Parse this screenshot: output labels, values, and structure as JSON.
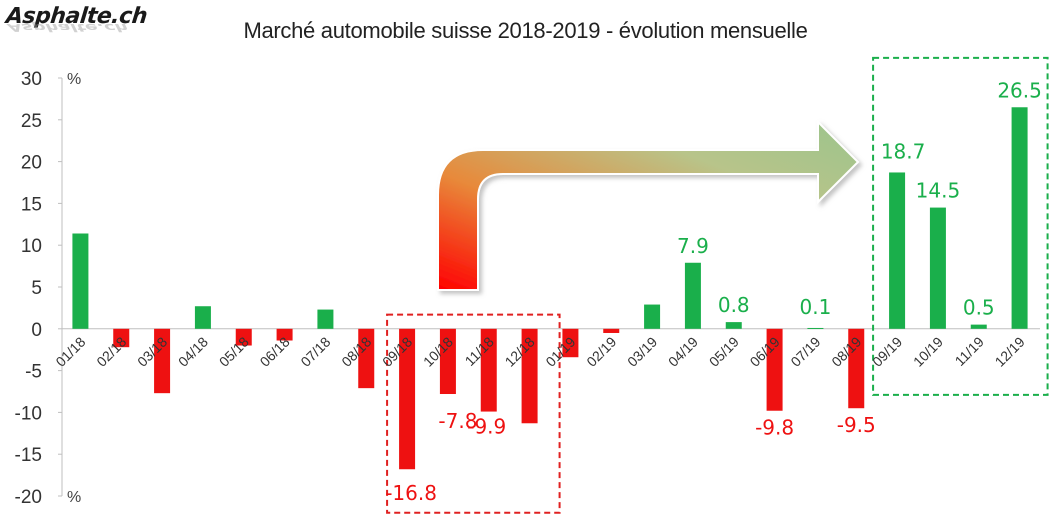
{
  "brand": {
    "logo_text": "Asphalte.ch"
  },
  "chart_data": {
    "type": "bar",
    "title": "Marché automobile suisse 2018-2019 - évolution mensuelle",
    "ylabel": "%",
    "ylim": [
      -20,
      30
    ],
    "yticks": [
      30,
      25,
      20,
      15,
      10,
      5,
      0,
      -5,
      -10,
      -15,
      -20
    ],
    "categories": [
      "01/18",
      "02/18",
      "03/18",
      "04/18",
      "05/18",
      "06/18",
      "07/18",
      "08/18",
      "09/18",
      "10/18",
      "11/18",
      "12/18",
      "01/19",
      "02/19",
      "03/19",
      "04/19",
      "05/19",
      "06/19",
      "07/19",
      "08/19",
      "09/19",
      "10/19",
      "11/19",
      "12/19"
    ],
    "values": [
      11.4,
      -2.2,
      -7.7,
      2.7,
      -2.0,
      -1.4,
      2.3,
      -7.1,
      -16.8,
      -7.8,
      -9.9,
      -11.3,
      -3.4,
      -0.5,
      2.9,
      7.9,
      0.8,
      -9.8,
      0.1,
      -9.5,
      18.7,
      14.5,
      0.5,
      26.5
    ],
    "data_labels": [
      null,
      null,
      null,
      null,
      null,
      null,
      null,
      null,
      "-16.8",
      "-7.8",
      "-9.9",
      null,
      null,
      null,
      null,
      "7.9",
      "0.8",
      "-9.8",
      "0.1",
      "-9.5",
      "18.7",
      "14.5",
      "0.5",
      "26.5"
    ],
    "colors": {
      "positive": "#1aaf4b",
      "negative": "#ee1111",
      "neg_box": "#e02020",
      "pos_box": "#1aaf4b"
    },
    "grid": false
  }
}
